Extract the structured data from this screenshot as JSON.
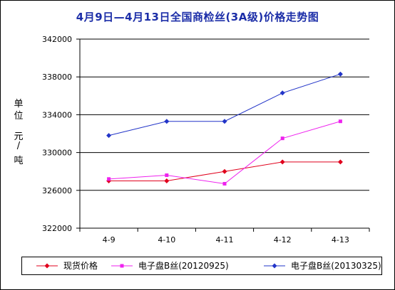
{
  "chart_data": {
    "type": "line",
    "title": "4月9日—4月13日全国商检丝(3A级)价格走势图",
    "ylabel": [
      "单",
      "位",
      "元",
      "/",
      "吨"
    ],
    "categories": [
      "4-9",
      "4-10",
      "4-11",
      "4-12",
      "4-13"
    ],
    "ylim": [
      322000,
      342000
    ],
    "yticks": [
      "342000",
      "338000",
      "334000",
      "330000",
      "326000",
      "322000"
    ],
    "grid": true,
    "legend_position": "bottom",
    "series": [
      {
        "name": "现货价格",
        "color": "#e0001c",
        "marker": "diamond",
        "values": [
          327000,
          327000,
          328000,
          329000,
          329000
        ]
      },
      {
        "name": "电子盘B丝(20120925)",
        "color": "#ee22ee",
        "marker": "square",
        "values": [
          327200,
          327600,
          326700,
          331500,
          333300
        ]
      },
      {
        "name": "电子盘B丝(20130325)",
        "color": "#2234c8",
        "marker": "diamond",
        "values": [
          331800,
          333300,
          333300,
          336300,
          338300
        ]
      }
    ]
  }
}
